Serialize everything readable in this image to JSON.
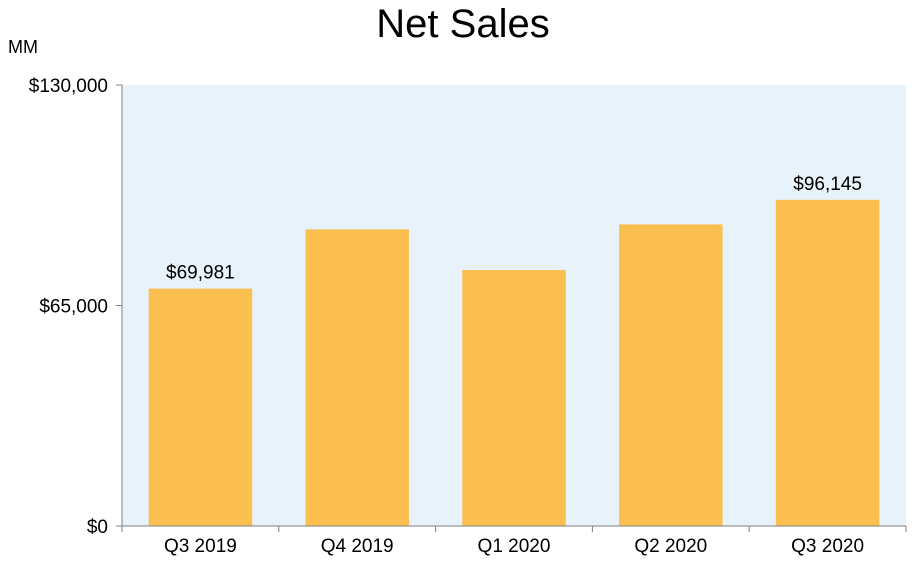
{
  "chart_data": {
    "type": "bar",
    "title": "Net Sales",
    "unit_label": "MM",
    "categories": [
      "Q3 2019",
      "Q4 2019",
      "Q1 2020",
      "Q2 2020",
      "Q3 2020"
    ],
    "values": [
      69981,
      87437,
      75452,
      88912,
      96145
    ],
    "data_labels": [
      "$69,981",
      "",
      "",
      "",
      "$96,145"
    ],
    "ylim": [
      0,
      130000
    ],
    "yticks": [
      {
        "value": 0,
        "label": "$0"
      },
      {
        "value": 65000,
        "label": "$65,000"
      },
      {
        "value": 130000,
        "label": "$130,000"
      }
    ],
    "xlabel": "",
    "ylabel": "",
    "grid": false,
    "legend": "none",
    "colors": {
      "bar": "#FBBF4F",
      "plot_background": "#E8F2FB",
      "axis": "#808080",
      "text": "#000000"
    }
  }
}
